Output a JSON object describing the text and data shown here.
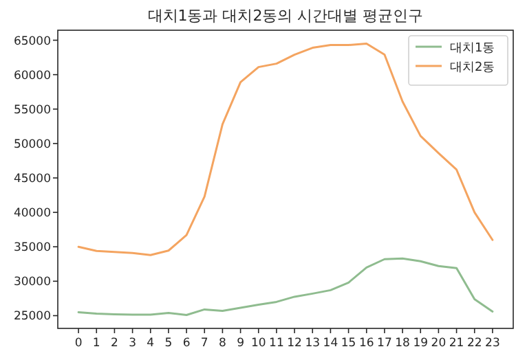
{
  "chart_data": {
    "type": "line",
    "title": "대치1동과 대치2동의 시간대별 평균인구",
    "x": [
      0,
      1,
      2,
      3,
      4,
      5,
      6,
      7,
      8,
      9,
      10,
      11,
      12,
      13,
      14,
      15,
      16,
      17,
      18,
      19,
      20,
      21,
      22,
      23
    ],
    "series": [
      {
        "name": "대치1동",
        "color": "#8fbc8f",
        "values": [
          25500,
          25300,
          25200,
          25150,
          25150,
          25400,
          25100,
          25900,
          25700,
          26150,
          26600,
          27000,
          27750,
          28200,
          28700,
          29800,
          32000,
          33200,
          33300,
          32900,
          32200,
          31900,
          27400,
          25600
        ]
      },
      {
        "name": "대치2동",
        "color": "#f4a460",
        "values": [
          35000,
          34400,
          34250,
          34100,
          33800,
          34450,
          36700,
          42300,
          52800,
          58900,
          61100,
          61600,
          62900,
          63900,
          64300,
          64300,
          64500,
          62900,
          56100,
          51100,
          48600,
          46200,
          40000,
          36000
        ]
      }
    ],
    "xlim": [
      -1.15,
      24.15
    ],
    "ylim": [
      23150,
      66450
    ],
    "xticks": [
      0,
      1,
      2,
      3,
      4,
      5,
      6,
      7,
      8,
      9,
      10,
      11,
      12,
      13,
      14,
      15,
      16,
      17,
      18,
      19,
      20,
      21,
      22,
      23
    ],
    "yticks": [
      25000,
      30000,
      35000,
      40000,
      45000,
      50000,
      55000,
      60000,
      65000
    ],
    "legend": "top right",
    "grid": false
  }
}
